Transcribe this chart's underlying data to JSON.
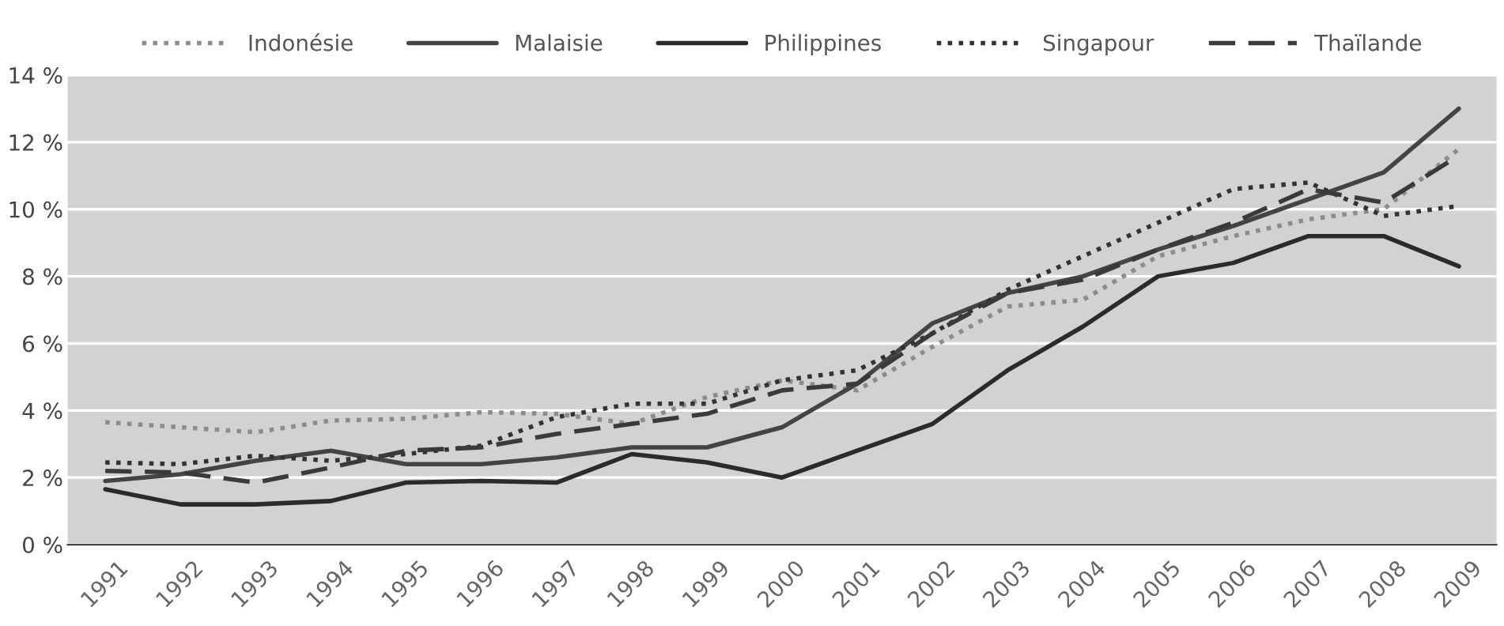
{
  "chart_data": {
    "type": "line",
    "categories": [
      "1991",
      "1992",
      "1993",
      "1994",
      "1995",
      "1996",
      "1997",
      "1998",
      "1999",
      "2000",
      "2001",
      "2002",
      "2003",
      "2004",
      "2005",
      "2006",
      "2007",
      "2008",
      "2009"
    ],
    "series": [
      {
        "name": "Indonésie",
        "color": "#8c8c8c",
        "line_style": "dotted",
        "values": [
          3.65,
          3.5,
          3.35,
          3.7,
          3.75,
          3.95,
          3.9,
          3.6,
          4.4,
          4.9,
          4.6,
          5.9,
          7.1,
          7.3,
          8.6,
          9.2,
          9.7,
          10.0,
          11.8
        ]
      },
      {
        "name": "Malaisie",
        "color": "#444444",
        "line_style": "solid",
        "values": [
          1.9,
          2.1,
          2.5,
          2.8,
          2.4,
          2.4,
          2.6,
          2.9,
          2.9,
          3.5,
          4.8,
          6.6,
          7.5,
          8.0,
          8.8,
          9.5,
          10.3,
          11.1,
          13.0
        ]
      },
      {
        "name": "Philippines",
        "color": "#2b2b2b",
        "line_style": "solid",
        "values": [
          1.65,
          1.2,
          1.2,
          1.3,
          1.85,
          1.9,
          1.85,
          2.7,
          2.45,
          2.0,
          2.8,
          3.6,
          5.2,
          6.5,
          8.0,
          8.4,
          9.2,
          9.2,
          8.3
        ]
      },
      {
        "name": "Singapour",
        "color": "#333333",
        "line_style": "dotted",
        "values": [
          2.45,
          2.4,
          2.65,
          2.5,
          2.7,
          2.95,
          3.8,
          4.2,
          4.2,
          4.9,
          5.2,
          6.3,
          7.6,
          8.6,
          9.6,
          10.6,
          10.8,
          9.8,
          10.1
        ]
      },
      {
        "name": "Thaïlande",
        "color": "#3a3a3a",
        "line_style": "dashed",
        "values": [
          2.2,
          2.15,
          1.85,
          2.3,
          2.8,
          2.9,
          3.3,
          3.6,
          3.9,
          4.6,
          4.8,
          6.3,
          7.5,
          7.9,
          8.8,
          9.6,
          10.6,
          10.2,
          11.6
        ]
      }
    ],
    "ylim": [
      0,
      14
    ],
    "yticks": [
      {
        "value": 0,
        "label": "0 %"
      },
      {
        "value": 2,
        "label": "2 %"
      },
      {
        "value": 4,
        "label": "4 %"
      },
      {
        "value": 6,
        "label": "6 %"
      },
      {
        "value": 8,
        "label": "8 %"
      },
      {
        "value": 10,
        "label": "10 %"
      },
      {
        "value": 12,
        "label": "12 %"
      },
      {
        "value": 14,
        "label": "14 %"
      }
    ],
    "grid": "y",
    "legend": "top",
    "marker": "none"
  }
}
